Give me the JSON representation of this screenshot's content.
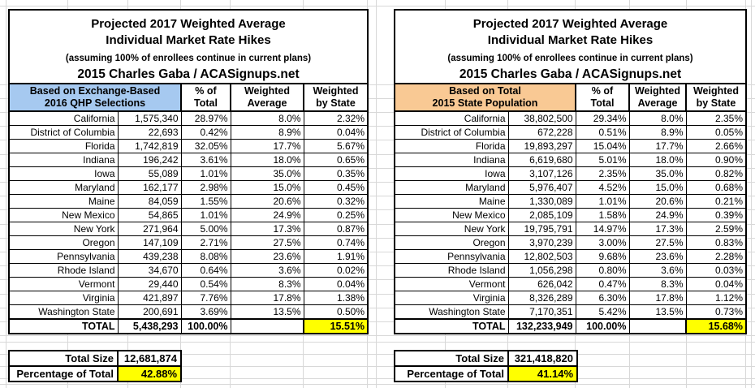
{
  "sheet": {
    "background": "#ffffff",
    "gridline_color": "#d8d8d8",
    "cell_border_color": "#000000"
  },
  "colors": {
    "highlight_yellow": "#ffff00",
    "exchange_header_blue": "#a6c9f0",
    "population_header_orange": "#f9c994"
  },
  "labels": {
    "total_row": "TOTAL",
    "total_size": "Total Size",
    "percentage_of_total": "Percentage of Total"
  },
  "columns": {
    "pct_line1": "% of",
    "pct_line2": "Total",
    "wavg_line1": "Weighted",
    "wavg_line2": "Average",
    "wstate_line1": "Weighted",
    "wstate_line2": "by State"
  },
  "panels": [
    {
      "title": {
        "line1": "Projected 2017 Weighted Average",
        "line2": "Individual Market Rate Hikes",
        "subtitle": "(assuming 100% of enrollees continue in current plans)",
        "byline": "2015 Charles Gaba / ACASignups.net"
      },
      "group_header": {
        "line1": "Based on Exchange-Based",
        "line2": "2016 QHP Selections",
        "bg": "#a6c9f0"
      },
      "rows": [
        [
          "California",
          "1,575,340",
          "28.97%",
          "8.0%",
          "2.32%"
        ],
        [
          "District of Columbia",
          "22,693",
          "0.42%",
          "8.9%",
          "0.04%"
        ],
        [
          "Florida",
          "1,742,819",
          "32.05%",
          "17.7%",
          "5.67%"
        ],
        [
          "Indiana",
          "196,242",
          "3.61%",
          "18.0%",
          "0.65%"
        ],
        [
          "Iowa",
          "55,089",
          "1.01%",
          "35.0%",
          "0.35%"
        ],
        [
          "Maryland",
          "162,177",
          "2.98%",
          "15.0%",
          "0.45%"
        ],
        [
          "Maine",
          "84,059",
          "1.55%",
          "20.6%",
          "0.32%"
        ],
        [
          "New Mexico",
          "54,865",
          "1.01%",
          "24.9%",
          "0.25%"
        ],
        [
          "New York",
          "271,964",
          "5.00%",
          "17.3%",
          "0.87%"
        ],
        [
          "Oregon",
          "147,109",
          "2.71%",
          "27.5%",
          "0.74%"
        ],
        [
          "Pennsylvania",
          "439,238",
          "8.08%",
          "23.6%",
          "1.91%"
        ],
        [
          "Rhode Island",
          "34,670",
          "0.64%",
          "3.6%",
          "0.02%"
        ],
        [
          "Vermont",
          "29,440",
          "0.54%",
          "8.3%",
          "0.04%"
        ],
        [
          "Virginia",
          "421,897",
          "7.76%",
          "17.8%",
          "1.38%"
        ],
        [
          "Washington State",
          "200,691",
          "3.69%",
          "13.5%",
          "0.50%"
        ]
      ],
      "total": {
        "label": "TOTAL",
        "count": "5,438,293",
        "pct": "100.00%",
        "wavg": "",
        "wstate": "15.51%"
      },
      "summary": {
        "total_size": "12,681,874",
        "percentage_of_total": "42.88%"
      }
    },
    {
      "title": {
        "line1": "Projected 2017 Weighted Average",
        "line2": "Individual Market Rate Hikes",
        "subtitle": "(assuming 100% of enrollees continue in current plans)",
        "byline": "2015 Charles Gaba / ACASignups.net"
      },
      "group_header": {
        "line1": "Based on Total",
        "line2": "2015 State Population",
        "bg": "#f9c994"
      },
      "rows": [
        [
          "California",
          "38,802,500",
          "29.34%",
          "8.0%",
          "2.35%"
        ],
        [
          "District of Columbia",
          "672,228",
          "0.51%",
          "8.9%",
          "0.05%"
        ],
        [
          "Florida",
          "19,893,297",
          "15.04%",
          "17.7%",
          "2.66%"
        ],
        [
          "Indiana",
          "6,619,680",
          "5.01%",
          "18.0%",
          "0.90%"
        ],
        [
          "Iowa",
          "3,107,126",
          "2.35%",
          "35.0%",
          "0.82%"
        ],
        [
          "Maryland",
          "5,976,407",
          "4.52%",
          "15.0%",
          "0.68%"
        ],
        [
          "Maine",
          "1,330,089",
          "1.01%",
          "20.6%",
          "0.21%"
        ],
        [
          "New Mexico",
          "2,085,109",
          "1.58%",
          "24.9%",
          "0.39%"
        ],
        [
          "New York",
          "19,795,791",
          "14.97%",
          "17.3%",
          "2.59%"
        ],
        [
          "Oregon",
          "3,970,239",
          "3.00%",
          "27.5%",
          "0.83%"
        ],
        [
          "Pennsylvania",
          "12,802,503",
          "9.68%",
          "23.6%",
          "2.28%"
        ],
        [
          "Rhode Island",
          "1,056,298",
          "0.80%",
          "3.6%",
          "0.03%"
        ],
        [
          "Vermont",
          "626,042",
          "0.47%",
          "8.3%",
          "0.04%"
        ],
        [
          "Virginia",
          "8,326,289",
          "6.30%",
          "17.8%",
          "1.12%"
        ],
        [
          "Washington State",
          "7,170,351",
          "5.42%",
          "13.5%",
          "0.73%"
        ]
      ],
      "total": {
        "label": "TOTAL",
        "count": "132,233,949",
        "pct": "100.00%",
        "wavg": "",
        "wstate": "15.68%"
      },
      "summary": {
        "total_size": "321,418,820",
        "percentage_of_total": "41.14%"
      }
    }
  ]
}
